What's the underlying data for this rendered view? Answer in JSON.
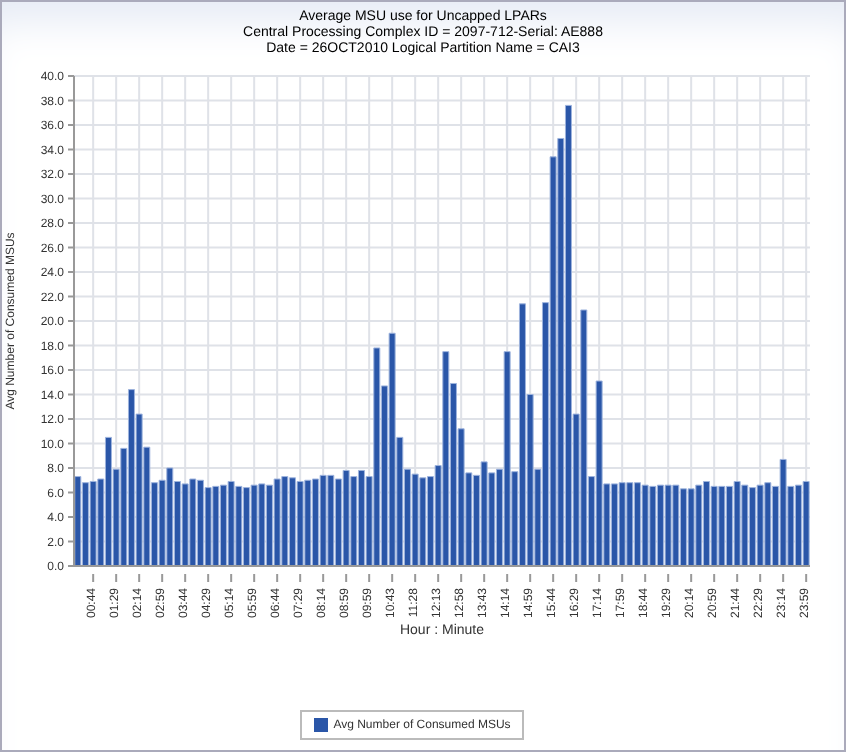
{
  "chart_data": {
    "type": "bar",
    "title": "Average MSU use for Uncapped LPARs",
    "subtitle": "Central Processing Complex ID = 2097-712-Serial: AE888\nDate = 26OCT2010 Logical Partition Name = CAI3",
    "xlabel": "Hour : Minute",
    "ylabel": "Avg Number of Consumed MSUs",
    "categories": [
      null,
      null,
      "00:44",
      null,
      null,
      "01:29",
      null,
      null,
      "02:14",
      null,
      null,
      "02:59",
      null,
      null,
      "03:44",
      null,
      null,
      "04:29",
      null,
      null,
      "05:14",
      null,
      null,
      "05:59",
      null,
      null,
      "06:44",
      null,
      null,
      "07:29",
      null,
      null,
      "08:14",
      null,
      null,
      "08:59",
      null,
      null,
      "09:59",
      null,
      null,
      "10:43",
      null,
      null,
      "11:28",
      null,
      null,
      "12:13",
      null,
      null,
      "12:58",
      null,
      null,
      "13:43",
      null,
      null,
      "14:14",
      null,
      null,
      "14:59",
      null,
      null,
      "15:44",
      null,
      null,
      "16:29",
      null,
      null,
      "17:14",
      null,
      null,
      "17:59",
      null,
      null,
      "18:44",
      null,
      null,
      "19:29",
      null,
      null,
      "20:14",
      null,
      null,
      "20:59",
      null,
      null,
      "21:44",
      null,
      null,
      "22:29",
      null,
      null,
      "23:14",
      null,
      null,
      "23:59"
    ],
    "series": [
      {
        "name": "Avg Number of Consumed MSUs",
        "color": "#2a56a8",
        "values": [
          7.3,
          6.8,
          6.9,
          7.1,
          10.5,
          7.9,
          9.6,
          14.4,
          12.4,
          9.7,
          6.8,
          7.0,
          8.0,
          6.9,
          6.7,
          7.1,
          7.0,
          6.4,
          6.5,
          6.6,
          6.9,
          6.5,
          6.4,
          6.6,
          6.7,
          6.6,
          7.1,
          7.3,
          7.2,
          6.9,
          7.0,
          7.1,
          7.4,
          7.4,
          7.1,
          7.8,
          7.3,
          7.8,
          7.3,
          17.8,
          14.7,
          19.0,
          10.5,
          7.9,
          7.5,
          7.2,
          7.3,
          8.2,
          17.5,
          14.9,
          11.2,
          7.6,
          7.4,
          8.5,
          7.6,
          7.9,
          17.5,
          7.7,
          21.4,
          14.0,
          7.9,
          21.5,
          33.4,
          34.9,
          37.6,
          12.4,
          20.9,
          7.3,
          15.1,
          6.7,
          6.7,
          6.8,
          6.8,
          6.8,
          6.6,
          6.5,
          6.6,
          6.6,
          6.6,
          6.3,
          6.3,
          6.6,
          6.9,
          6.5,
          6.5,
          6.5,
          6.9,
          6.6,
          6.4,
          6.6,
          6.8,
          6.5,
          8.7,
          6.5,
          6.6,
          6.9
        ]
      }
    ],
    "ylim": [
      0,
      40
    ],
    "yticks": [
      {
        "value": 0,
        "label": "0.0"
      },
      {
        "value": 2,
        "label": "2.0"
      },
      {
        "value": 4,
        "label": "4.0"
      },
      {
        "value": 6,
        "label": "6.0"
      },
      {
        "value": 8,
        "label": "8.0"
      },
      {
        "value": 10,
        "label": "10.0"
      },
      {
        "value": 12,
        "label": "12.0"
      },
      {
        "value": 14,
        "label": "14.0"
      },
      {
        "value": 16,
        "label": "16.0"
      },
      {
        "value": 18,
        "label": "18.0"
      },
      {
        "value": 20,
        "label": "20.0"
      },
      {
        "value": 22,
        "label": "22.0"
      },
      {
        "value": 24,
        "label": "24.0"
      },
      {
        "value": 26,
        "label": "26.0"
      },
      {
        "value": 28,
        "label": "28.0"
      },
      {
        "value": 30,
        "label": "30.0"
      },
      {
        "value": 32,
        "label": "32.0"
      },
      {
        "value": 34,
        "label": "34.0"
      },
      {
        "value": 36,
        "label": "36.0"
      },
      {
        "value": 38,
        "label": "38.0"
      },
      {
        "value": 40,
        "label": "40.0"
      }
    ],
    "grid": true,
    "legend": "bottom"
  }
}
